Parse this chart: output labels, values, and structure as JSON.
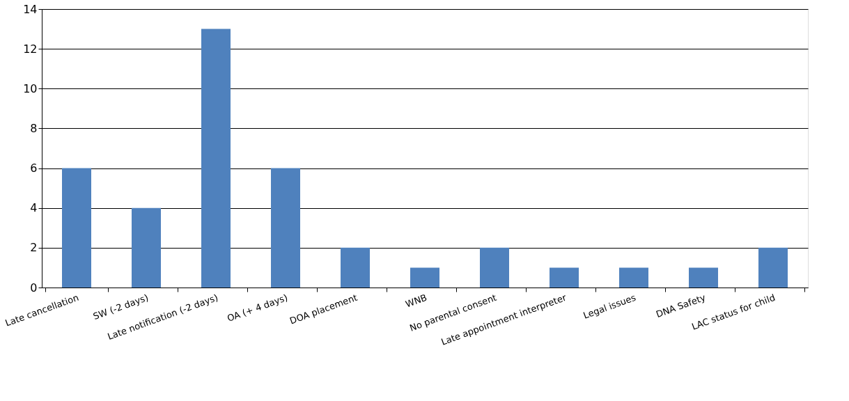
{
  "chart_data": {
    "type": "bar",
    "categories": [
      "Late cancellation",
      "SW (-2 days)",
      "Late notification (-2 days)",
      "OA (+ 4 days)",
      "DOA placement",
      "WNB",
      "No parental consent",
      "Late appointment interpreter",
      "Legal issues",
      "DNA Safety",
      "LAC status for child"
    ],
    "values": [
      6,
      4,
      13,
      6,
      2,
      1,
      2,
      1,
      1,
      1,
      2
    ],
    "color": "#4f81bd",
    "ylim": [
      0,
      14
    ],
    "yticks": [
      0,
      2,
      4,
      6,
      8,
      10,
      12,
      14
    ],
    "grid": "y"
  }
}
